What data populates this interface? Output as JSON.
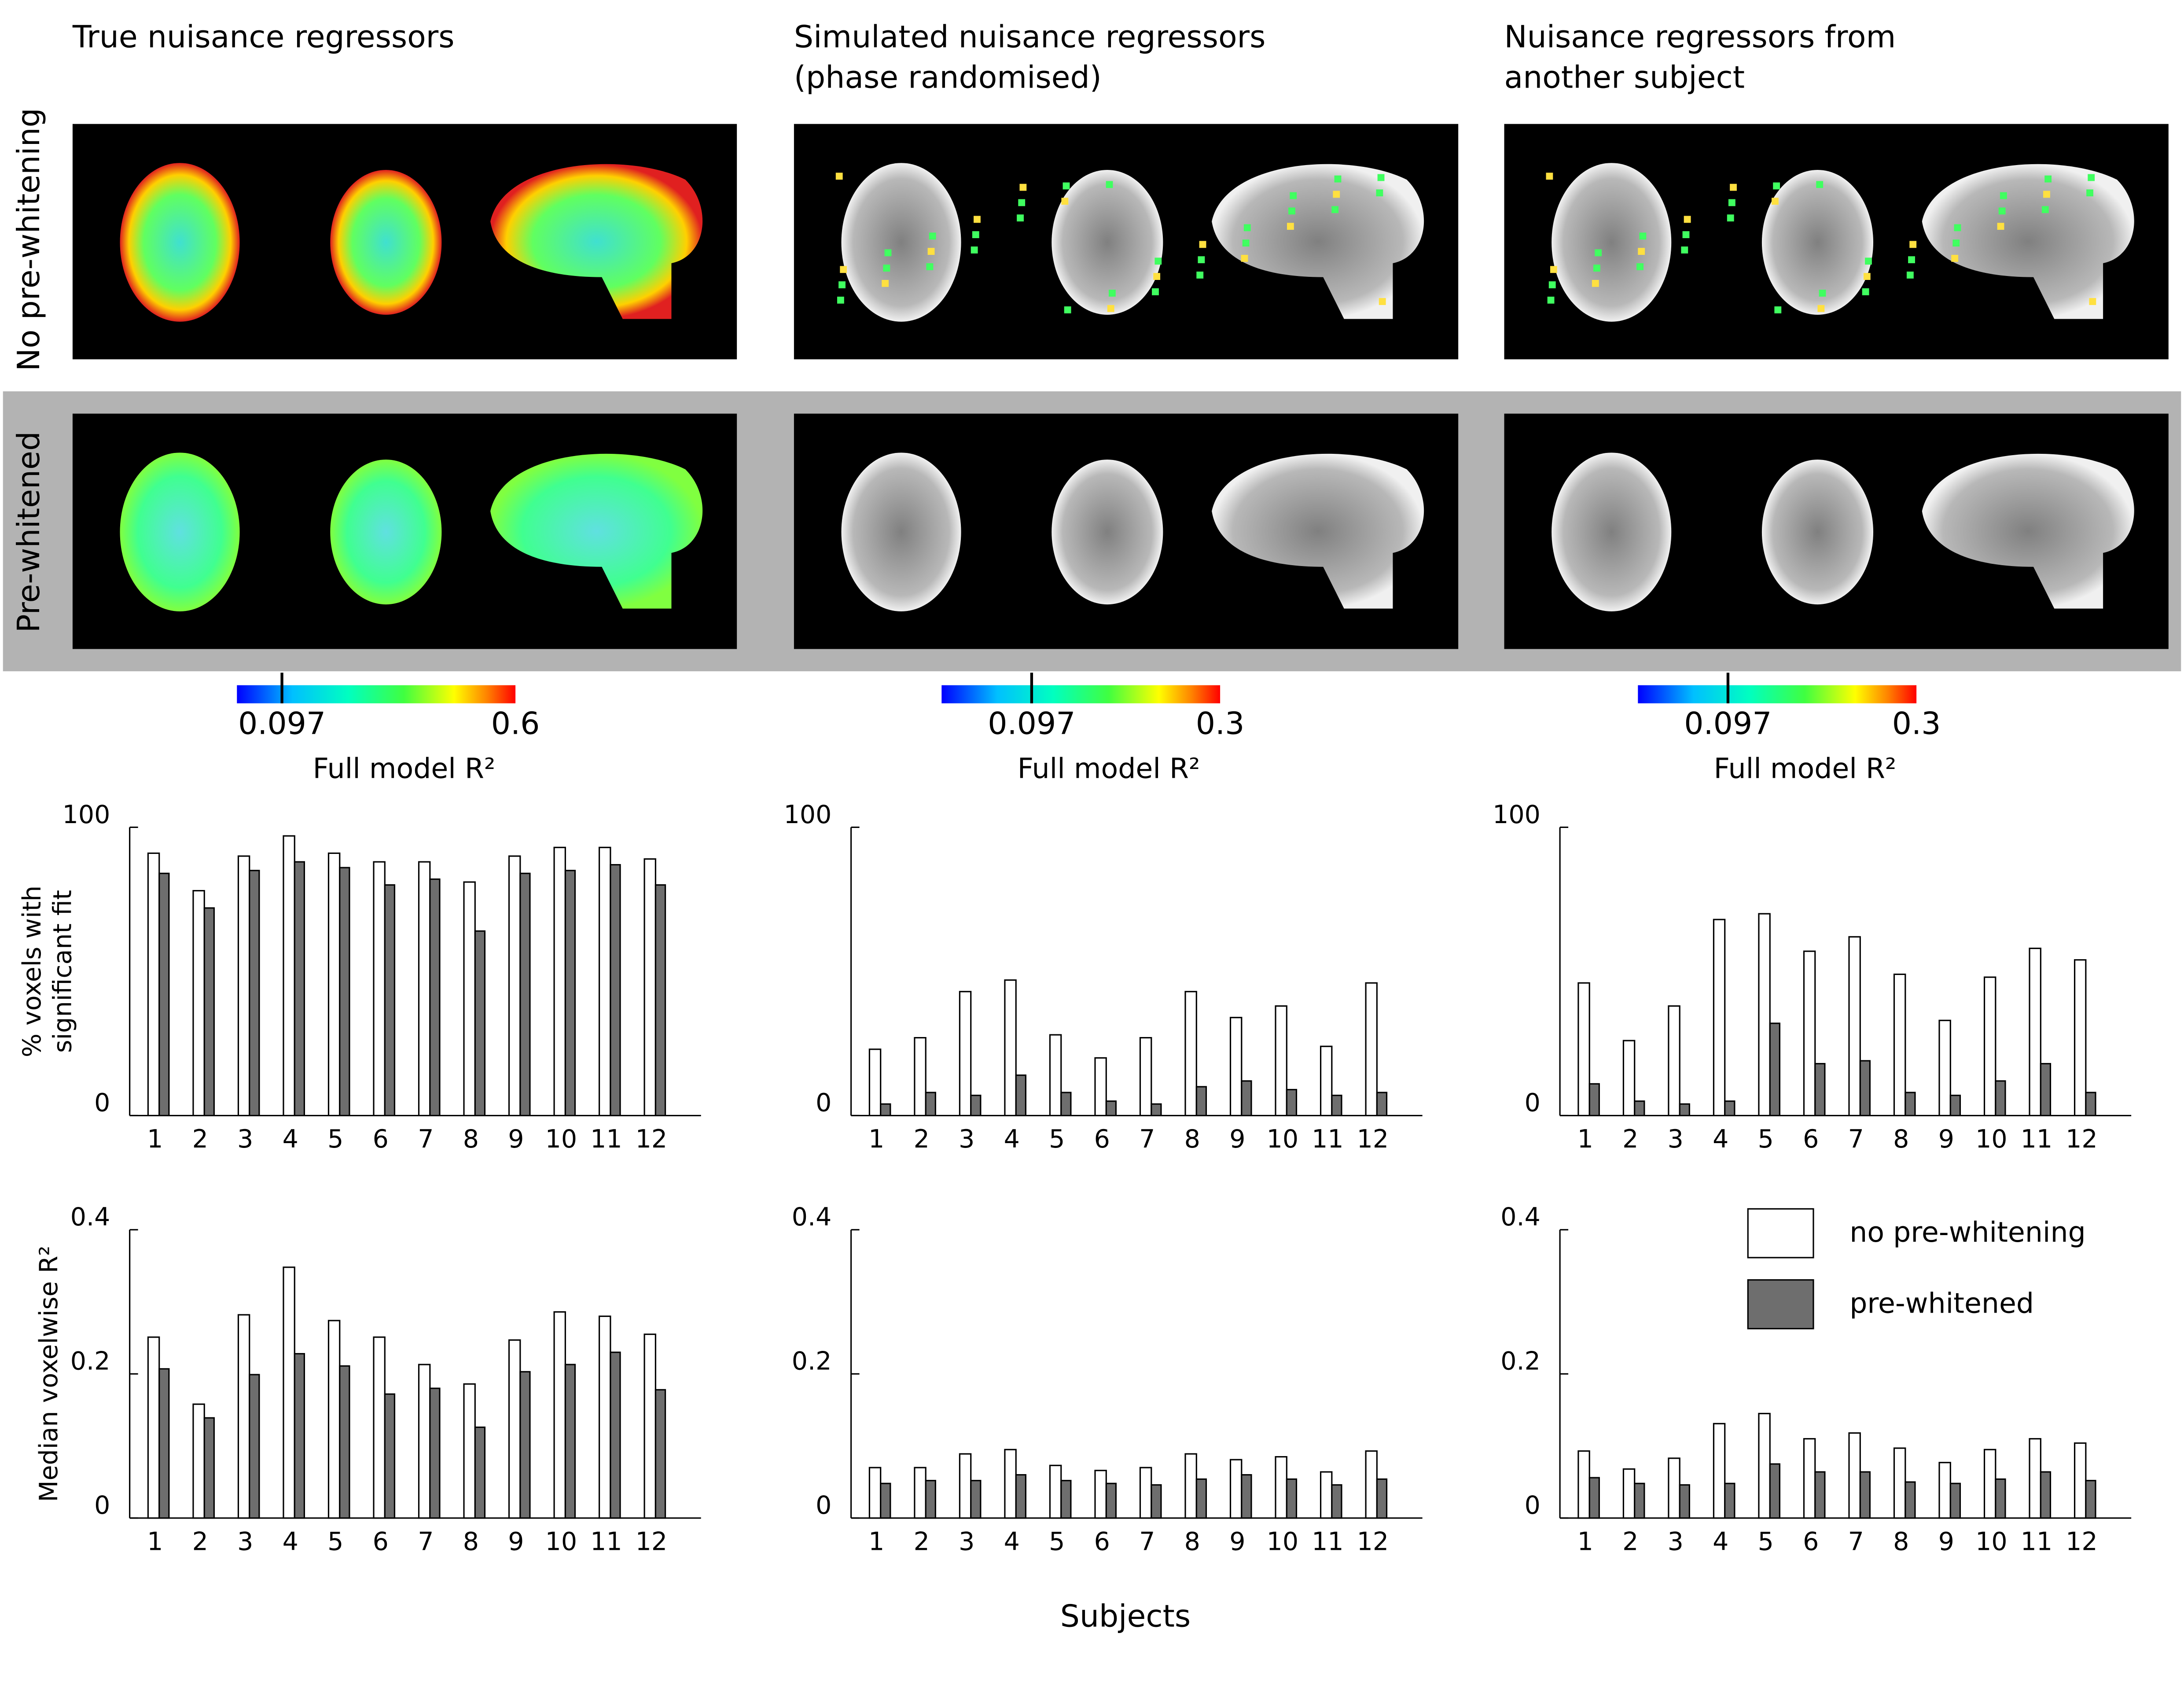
{
  "column_titles": [
    [
      "True nuisance regressors"
    ],
    [
      "Simulated nuisance regressors",
      "(phase randomised)"
    ],
    [
      "Nuisance regressors from",
      "another subject"
    ]
  ],
  "row_labels": [
    "No pre-whitening",
    "Pre-whitened"
  ],
  "colorbars": [
    {
      "lim": [
        0,
        0.6
      ],
      "ticks": [
        0.097,
        0.6
      ],
      "label": "Full model R²"
    },
    {
      "lim": [
        0,
        0.3
      ],
      "ticks": [
        0.097,
        0.3
      ],
      "label": "Full model R²"
    },
    {
      "lim": [
        0,
        0.3
      ],
      "ticks": [
        0.097,
        0.3
      ],
      "label": "Full model R²"
    }
  ],
  "x_label": "Subjects",
  "chart_data": [
    {
      "type": "bar",
      "ylabel": [
        "% voxels with",
        "significant fit"
      ],
      "categories": [
        "1",
        "2",
        "3",
        "4",
        "5",
        "6",
        "7",
        "8",
        "9",
        "10",
        "11",
        "12"
      ],
      "series": [
        {
          "color": "#ffffff",
          "values": [
            91,
            78,
            90,
            97,
            91,
            88,
            88,
            81,
            90,
            93,
            93,
            89
          ]
        },
        {
          "color": "#6e6e6e",
          "values": [
            84,
            72,
            85,
            88,
            86,
            80,
            82,
            64,
            84,
            85,
            87,
            80
          ]
        }
      ],
      "ylim": [
        0,
        100
      ],
      "yticks": [
        0,
        100
      ]
    },
    {
      "type": "bar",
      "categories": [
        "1",
        "2",
        "3",
        "4",
        "5",
        "6",
        "7",
        "8",
        "9",
        "10",
        "11",
        "12"
      ],
      "series": [
        {
          "color": "#ffffff",
          "values": [
            23,
            27,
            43,
            47,
            28,
            20,
            27,
            43,
            34,
            38,
            24,
            46
          ]
        },
        {
          "color": "#6e6e6e",
          "values": [
            4,
            8,
            7,
            14,
            8,
            5,
            4,
            10,
            12,
            9,
            7,
            8
          ]
        }
      ],
      "ylim": [
        0,
        100
      ],
      "yticks": [
        0,
        100
      ]
    },
    {
      "type": "bar",
      "categories": [
        "1",
        "2",
        "3",
        "4",
        "5",
        "6",
        "7",
        "8",
        "9",
        "10",
        "11",
        "12"
      ],
      "series": [
        {
          "color": "#ffffff",
          "values": [
            46,
            26,
            38,
            68,
            70,
            57,
            62,
            49,
            33,
            48,
            58,
            54
          ]
        },
        {
          "color": "#6e6e6e",
          "values": [
            11,
            5,
            4,
            5,
            32,
            18,
            19,
            8,
            7,
            12,
            18,
            8
          ]
        }
      ],
      "ylim": [
        0,
        100
      ],
      "yticks": [
        0,
        100
      ]
    },
    {
      "type": "bar",
      "ylabel": [
        "Median voxelwise R²"
      ],
      "categories": [
        "1",
        "2",
        "3",
        "4",
        "5",
        "6",
        "7",
        "8",
        "9",
        "10",
        "11",
        "12"
      ],
      "series": [
        {
          "color": "#ffffff",
          "values": [
            0.251,
            0.158,
            0.282,
            0.348,
            0.274,
            0.251,
            0.213,
            0.186,
            0.247,
            0.286,
            0.28,
            0.255
          ]
        },
        {
          "color": "#6e6e6e",
          "values": [
            0.207,
            0.139,
            0.199,
            0.228,
            0.211,
            0.172,
            0.18,
            0.126,
            0.203,
            0.213,
            0.23,
            0.178
          ]
        }
      ],
      "ylim": [
        0,
        0.4
      ],
      "yticks": [
        0,
        0.2,
        0.4
      ]
    },
    {
      "type": "bar",
      "categories": [
        "1",
        "2",
        "3",
        "4",
        "5",
        "6",
        "7",
        "8",
        "9",
        "10",
        "11",
        "12"
      ],
      "series": [
        {
          "color": "#ffffff",
          "values": [
            0.07,
            0.07,
            0.089,
            0.095,
            0.073,
            0.066,
            0.07,
            0.089,
            0.081,
            0.085,
            0.064,
            0.093
          ]
        },
        {
          "color": "#6e6e6e",
          "values": [
            0.048,
            0.052,
            0.052,
            0.06,
            0.052,
            0.048,
            0.046,
            0.054,
            0.06,
            0.054,
            0.046,
            0.054
          ]
        }
      ],
      "ylim": [
        0,
        0.4
      ],
      "yticks": [
        0,
        0.2,
        0.4
      ]
    },
    {
      "type": "bar",
      "categories": [
        "1",
        "2",
        "3",
        "4",
        "5",
        "6",
        "7",
        "8",
        "9",
        "10",
        "11",
        "12"
      ],
      "series": [
        {
          "name": "no pre-whitening",
          "color": "#ffffff",
          "values": [
            0.093,
            0.068,
            0.083,
            0.131,
            0.145,
            0.11,
            0.118,
            0.097,
            0.077,
            0.095,
            0.11,
            0.104
          ]
        },
        {
          "name": "pre-whitened",
          "color": "#6e6e6e",
          "values": [
            0.056,
            0.048,
            0.046,
            0.048,
            0.075,
            0.064,
            0.064,
            0.05,
            0.048,
            0.054,
            0.064,
            0.052
          ]
        }
      ],
      "ylim": [
        0,
        0.4
      ],
      "yticks": [
        0,
        0.2,
        0.4
      ],
      "legend": "upper right"
    }
  ]
}
